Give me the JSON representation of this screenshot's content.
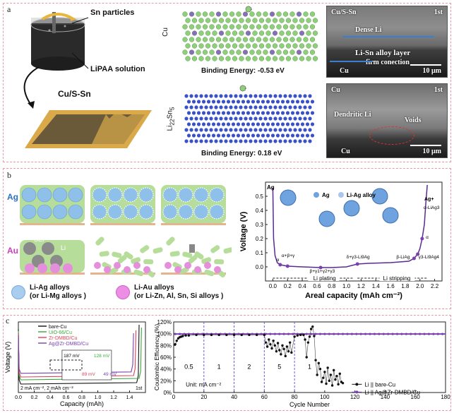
{
  "panel_a": {
    "label": "a",
    "sn_particles": "Sn particles",
    "lipaa_solution": "LiPAA solution",
    "cu_s_sn": "Cu/S-Sn",
    "lattice_top_side": "Cu",
    "lattice_top_energy": "Binding Energy: -0.53 eV",
    "lattice_bottom_side": "Li22Sn5",
    "lattice_bottom_energy": "Binding Energy: 0.18 eV",
    "sem_top": {
      "title": "Cu/S-Sn",
      "cycle": "1st",
      "dense": "Dense Li",
      "alloy": "Li-Sn alloy layer",
      "firm": "firm conection",
      "cu": "Cu",
      "scale": "10 μm"
    },
    "sem_bottom": {
      "title": "Cu",
      "cycle": "1st",
      "dendritic": "Dendritic Li",
      "voids": "Voids",
      "cu": "Cu",
      "scale": "10 μm"
    }
  },
  "panel_b": {
    "label": "b",
    "ag": "Ag",
    "au": "Au",
    "sei": "SEI",
    "li": "Li",
    "legend_ag": "Li-Ag alloys",
    "legend_ag_sub": "(or Li-Mg alloys )",
    "legend_au": "Li-Au alloys",
    "legend_au_sub": "(or Li-Zn, Al, Sn, Si alloys )",
    "inset_ag": "Ag",
    "inset_alloy": "Li-Ag alloy",
    "phase_1": "α+β+γ",
    "phase_2": "β+γ1+γ2+γ3",
    "phase_3": "δ+γ3-Li9Ag",
    "phase_4": "β-LiAg",
    "phase_5": "γ3-Li9Ag4",
    "phase_alpha": "α",
    "phase_alpha2": "α",
    "phase_ag_plus": "Ag+",
    "phase_ag_plus2": "α-LiAg3",
    "ag_corner": "Ag",
    "plating": "Li plating",
    "stripping": "Li stripping"
  },
  "panel_c": {
    "label": "c",
    "cond_text": "2 mA cm⁻², 2 mAh cm⁻²",
    "cycle_text": "1st",
    "inset_vals": [
      "187 mV",
      "128 mV",
      "89 mV",
      "49 mV"
    ],
    "rates": [
      "0.5",
      "1",
      "2",
      "5",
      "1"
    ],
    "unit_text": "Unit: mA cm⁻²"
  },
  "chart_data": [
    {
      "type": "line",
      "xlabel": "Areal capacity (mAh cm⁻²)",
      "ylabel": "Voltage (V)",
      "xlim": [
        -0.1,
        2.3
      ],
      "ylim": [
        -0.1,
        0.6
      ],
      "xticks": [
        "0.0",
        "0.2",
        "0.4",
        "0.6",
        "0.8",
        "1.0",
        "1.2",
        "1.4",
        "1.6",
        "1.8",
        "2.0",
        "2.2"
      ],
      "yticks": [
        "0.0",
        "0.1",
        "0.2",
        "0.3",
        "0.4",
        "0.5"
      ],
      "series": [
        {
          "x": [
            0.0,
            0.01,
            0.03,
            0.06,
            0.1,
            0.15,
            0.2,
            0.4,
            0.65,
            0.8,
            1.0,
            1.15,
            1.3,
            1.6,
            1.85,
            1.92,
            1.97,
            2.0,
            2.03,
            2.06,
            2.08,
            2.1
          ],
          "y": [
            0.56,
            0.2,
            0.08,
            0.03,
            0.015,
            0.01,
            0.005,
            0.0,
            -0.005,
            -0.005,
            0.0,
            0.02,
            0.025,
            0.03,
            0.04,
            0.06,
            0.09,
            0.13,
            0.2,
            0.3,
            0.45,
            0.58
          ]
        }
      ],
      "markers_x": [
        0.1,
        0.2,
        0.65,
        1.15,
        1.92,
        1.97,
        2.03
      ],
      "markers_y": [
        0.015,
        0.005,
        -0.005,
        0.02,
        0.06,
        0.09,
        0.2
      ]
    },
    {
      "type": "line",
      "xlabel": "Capacity (mAh)",
      "ylabel": "Voltage (V)",
      "xlim": [
        0,
        1.6
      ],
      "xticks": [
        "0.0",
        "0.2",
        "0.4",
        "0.6",
        "0.8",
        "1.0",
        "1.2",
        "1.4"
      ],
      "series": [
        {
          "name": "bare-Cu",
          "color": "#111111",
          "end": 1.52,
          "plateau": -0.05
        },
        {
          "name": "UiO-66/Cu",
          "color": "#38a83a",
          "end": 1.55,
          "plateau": -0.035
        },
        {
          "name": "Zr-DMBD/Cu",
          "color": "#e0405a",
          "end": 1.48,
          "plateau": -0.025
        },
        {
          "name": "Ag@Zr-DMBD/Cu",
          "color": "#7a3fb0",
          "end": 1.45,
          "plateau": -0.012
        }
      ]
    },
    {
      "type": "scatter",
      "xlabel": "Cycle Number",
      "ylabel": "Coulombic Efficiency (%)",
      "xlim": [
        0,
        180
      ],
      "ylim": [
        0,
        120
      ],
      "xticks": [
        "0",
        "20",
        "40",
        "60",
        "80",
        "100",
        "120",
        "140",
        "160",
        "180"
      ],
      "yticks": [
        "0",
        "20",
        "40",
        "60",
        "80",
        "100",
        "120"
      ],
      "series": [
        {
          "name": "Li || bare-Cu",
          "color": "#111111",
          "x": [
            1,
            2,
            3,
            4,
            5,
            6,
            8,
            10,
            15,
            20,
            25,
            30,
            35,
            40,
            45,
            50,
            55,
            60,
            61,
            62,
            63,
            64,
            65,
            66,
            67,
            68,
            69,
            70,
            71,
            72,
            73,
            74,
            75,
            76,
            77,
            78,
            80,
            82,
            84,
            86,
            87,
            88,
            89,
            90,
            91,
            92,
            93,
            94,
            95,
            96,
            97,
            98,
            99,
            100,
            101,
            102,
            103,
            104,
            105,
            106,
            107,
            108,
            109,
            110,
            111,
            112
          ],
          "y": [
            82,
            88,
            92,
            94,
            95,
            96,
            97,
            97,
            98,
            98,
            98,
            98,
            98,
            98,
            98,
            98,
            98,
            98,
            85,
            78,
            90,
            82,
            75,
            88,
            80,
            70,
            84,
            72,
            65,
            80,
            74,
            62,
            78,
            70,
            85,
            68,
            95,
            97,
            98,
            98,
            90,
            60,
            85,
            95,
            108,
            112,
            96,
            55,
            30,
            50,
            40,
            18,
            25,
            35,
            15,
            42,
            20,
            30,
            12,
            38,
            22,
            28,
            14,
            32,
            18,
            16
          ]
        },
        {
          "name": "Li || Ag@Zr-DMBD/Cu",
          "color": "#7a3fb0",
          "value": 99.5
        }
      ],
      "dividers": [
        20,
        40,
        60,
        80
      ]
    }
  ]
}
